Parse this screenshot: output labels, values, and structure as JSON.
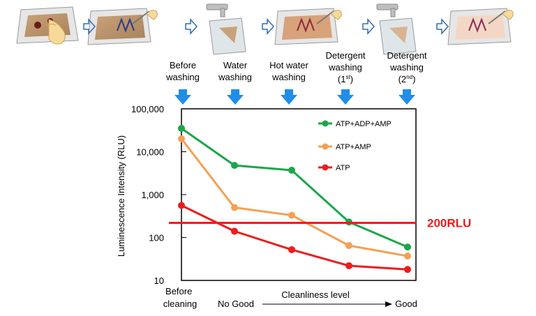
{
  "steps": [
    {
      "label_lines": [
        "Before",
        "washing"
      ]
    },
    {
      "label_lines": [
        "Water",
        "washing"
      ]
    },
    {
      "label_lines": [
        "Hot water",
        "washing"
      ]
    },
    {
      "label_lines": [
        "Detergent",
        "washing",
        "(1st)"
      ]
    },
    {
      "label_lines": [
        "Detergent",
        "washing",
        "(2nd)"
      ]
    }
  ],
  "colors": {
    "green": "#1aa64a",
    "orange": "#f4a054",
    "red": "#ee1c1c",
    "arrow_blue": "#1f8ee8",
    "flow_arrow": "#2f6fb0"
  },
  "icons": [
    "hand-wiping-board-icon",
    "swab-board-icon",
    "faucet-rinse-icon",
    "swab-board-icon",
    "faucet-rinse-icon",
    "swab-board-icon"
  ],
  "chart_data": {
    "type": "line",
    "title": "",
    "ylabel": "Luminescence Intensity (RLU)",
    "xlabel": "Cleanliness level",
    "x_left_label_lines": [
      "Before",
      "cleaning"
    ],
    "x_mid_left": "No Good",
    "x_right": "Good",
    "yscale": "log",
    "ylim": [
      10,
      100000
    ],
    "yticks": [
      {
        "v": 10,
        "label": "10"
      },
      {
        "v": 100,
        "label": "100"
      },
      {
        "v": 1000,
        "label": "1,000"
      },
      {
        "v": 10000,
        "label": "10,000"
      },
      {
        "v": 100000,
        "label": "100,000"
      }
    ],
    "x": [
      "Before washing",
      "Water washing",
      "Hot water washing",
      "Detergent washing (1st)",
      "Detergent washing (2nd)"
    ],
    "series": [
      {
        "name": "ATP+ADP+AMP",
        "color": "#1aa64a",
        "values": [
          35000,
          4800,
          3700,
          230,
          60
        ]
      },
      {
        "name": "ATP+AMP",
        "color": "#f4a054",
        "values": [
          20000,
          500,
          330,
          65,
          37
        ]
      },
      {
        "name": "ATP",
        "color": "#ee1c1c",
        "values": [
          560,
          140,
          52,
          22,
          18
        ]
      }
    ],
    "threshold": {
      "value": 220,
      "label": "200RLU",
      "color": "#ee1c1c"
    },
    "legend_position": "top-right",
    "grid": false
  }
}
